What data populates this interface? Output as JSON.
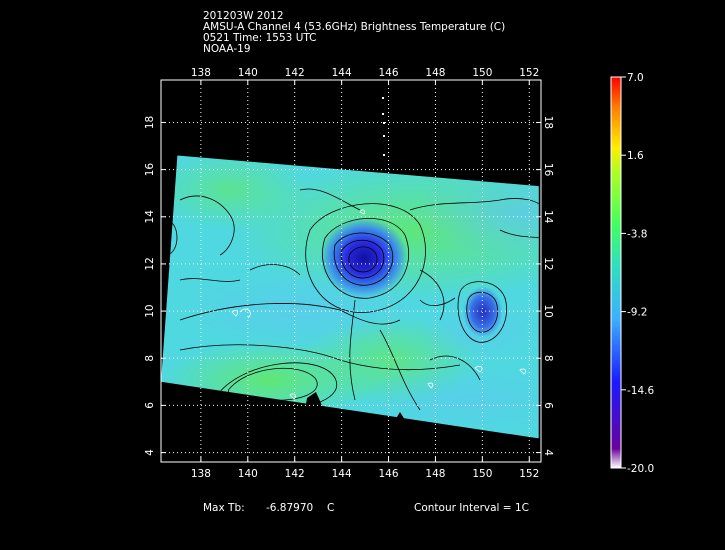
{
  "header": {
    "line1": "201203W 2012",
    "line2": "AMSU-A Channel 4 (53.6GHz) Brightness Temperature (C)",
    "line3": "0521 Time: 1553 UTC",
    "line4": "NOAA-19"
  },
  "footer": {
    "max_tb_label": "Max Tb:",
    "max_tb_value": "-6.87970",
    "max_tb_unit": "C",
    "contour_interval": "Contour Interval = 1C"
  },
  "colorbar": {
    "labels": [
      "7.0",
      "1.6",
      "-3.8",
      "-9.2",
      "-14.6",
      "-20.0"
    ],
    "range": [
      -20.0,
      7.0
    ]
  },
  "colors": {
    "background": "#000000",
    "field_green": "#5fe680",
    "field_cyan": "#4fd6ec",
    "low_blue": "#2a2ad8",
    "contour": "#000000",
    "grid": "#ffffff"
  },
  "chart_data": {
    "type": "heatmap",
    "title": "AMSU-A Channel 4 (53.6GHz) Brightness Temperature (C)",
    "x_ticks": [
      138,
      140,
      142,
      144,
      146,
      148,
      150,
      152
    ],
    "y_ticks": [
      4,
      6,
      8,
      10,
      12,
      14,
      16,
      18
    ],
    "xlim": [
      136.3,
      152.5
    ],
    "ylim": [
      3.6,
      19.8
    ],
    "grid": true,
    "swath_corners": [
      [
        137.0,
        16.6
      ],
      [
        152.4,
        15.3
      ],
      [
        152.4,
        4.6
      ],
      [
        136.3,
        7.0
      ]
    ],
    "features": [
      {
        "name": "cold core",
        "lon": 145.0,
        "lat": 12.0,
        "tb_min": -16.5
      },
      {
        "name": "cold core",
        "lon": 149.6,
        "lat": 10.2,
        "tb_min": -14.0
      }
    ],
    "max_tb": -6.8797,
    "contour_interval": 1
  }
}
